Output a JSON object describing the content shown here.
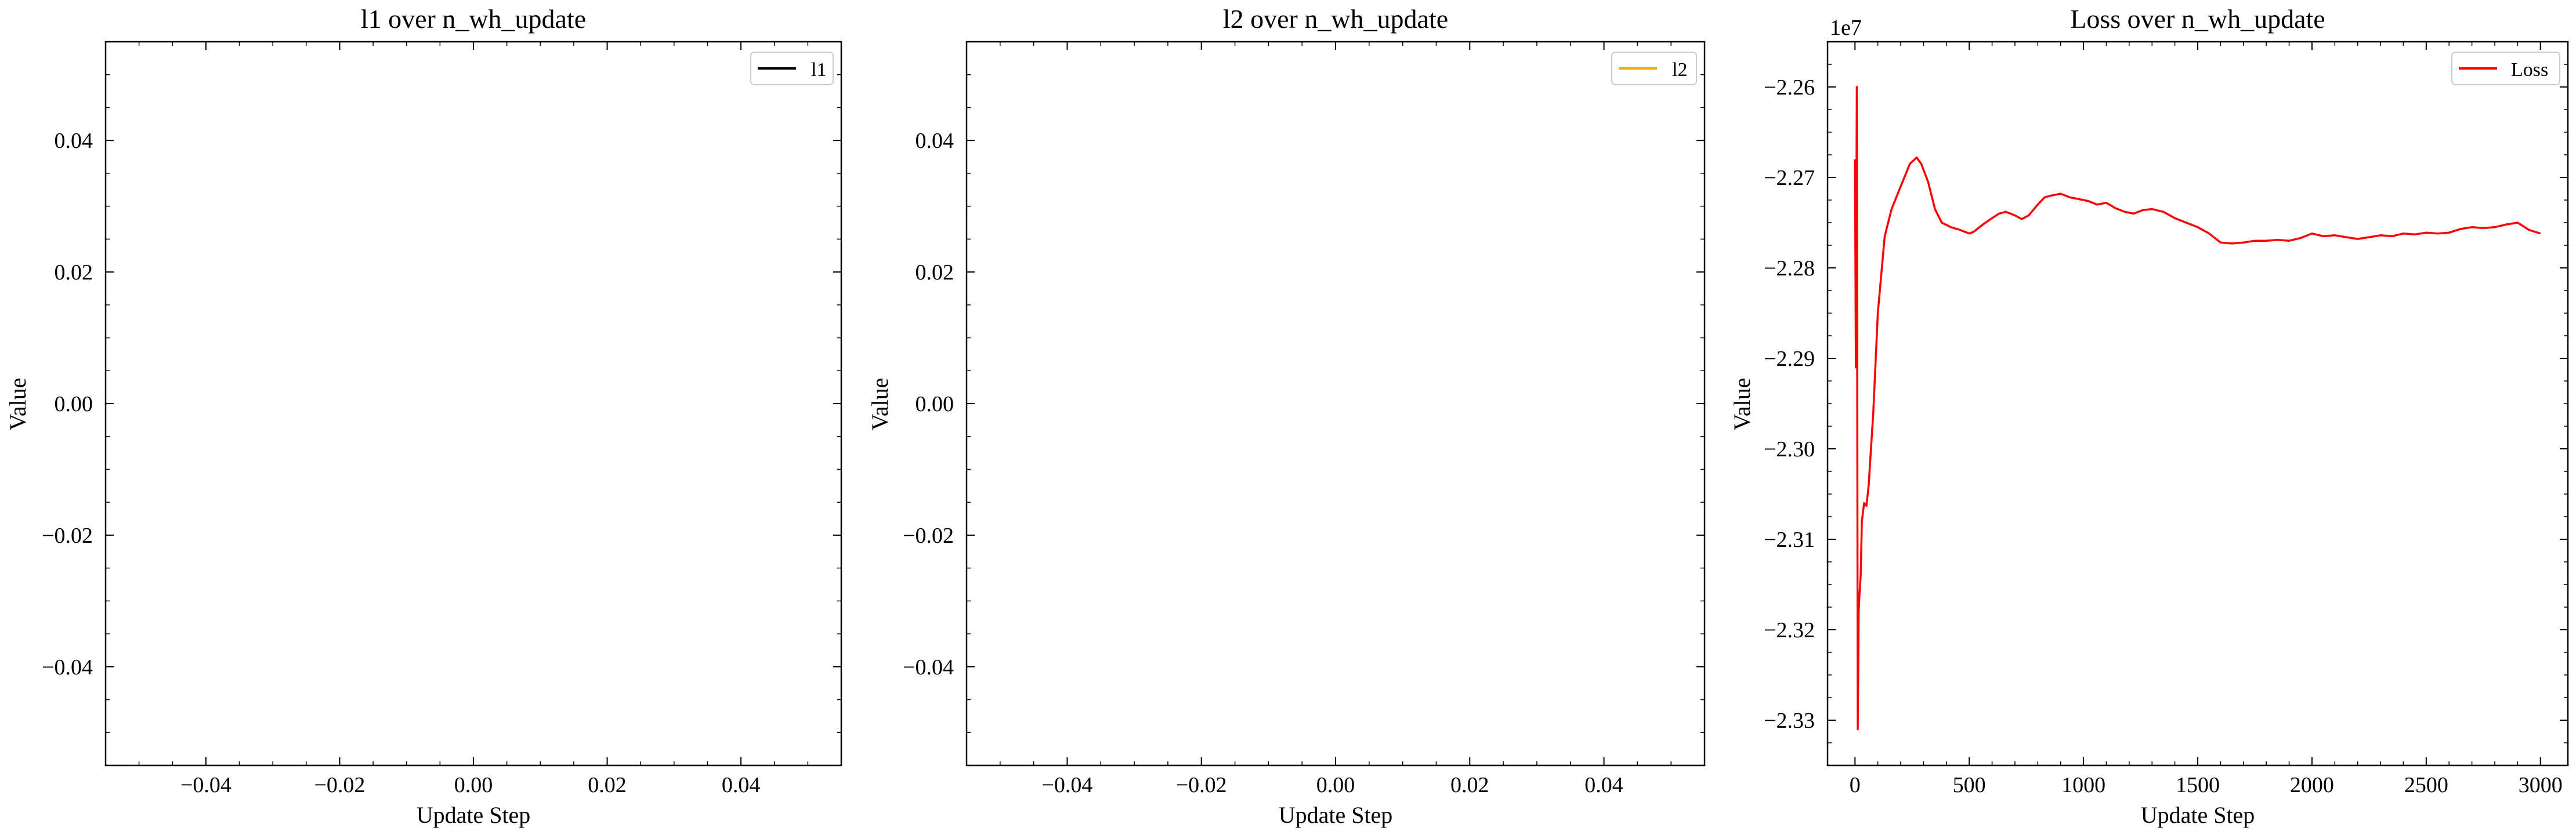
{
  "figure": {
    "background": "#ffffff"
  },
  "chart_data": [
    {
      "type": "line",
      "title": "l1 over n_wh_update",
      "xlabel": "Update Step",
      "ylabel": "Value",
      "xlim": [
        -0.055,
        0.055
      ],
      "ylim": [
        -0.055,
        0.055
      ],
      "xticks": [
        -0.04,
        -0.02,
        0.0,
        0.02,
        0.04
      ],
      "xtick_labels": [
        "−0.04",
        "−0.02",
        "0.00",
        "0.02",
        "0.04"
      ],
      "yticks": [
        -0.04,
        -0.02,
        0.0,
        0.02,
        0.04
      ],
      "ytick_labels": [
        "−0.04",
        "−0.02",
        "0.00",
        "0.02",
        "0.04"
      ],
      "legend_position": "top-right",
      "grid": false,
      "series": [
        {
          "name": "l1",
          "color": "#000000",
          "x": [],
          "y": []
        }
      ]
    },
    {
      "type": "line",
      "title": "l2 over n_wh_update",
      "xlabel": "Update Step",
      "ylabel": "Value",
      "xlim": [
        -0.055,
        0.055
      ],
      "ylim": [
        -0.055,
        0.055
      ],
      "xticks": [
        -0.04,
        -0.02,
        0.0,
        0.02,
        0.04
      ],
      "xtick_labels": [
        "−0.04",
        "−0.02",
        "0.00",
        "0.02",
        "0.04"
      ],
      "yticks": [
        -0.04,
        -0.02,
        0.0,
        0.02,
        0.04
      ],
      "ytick_labels": [
        "−0.04",
        "−0.02",
        "0.00",
        "0.02",
        "0.04"
      ],
      "legend_position": "top-right",
      "grid": false,
      "series": [
        {
          "name": "l2",
          "color": "#ffa500",
          "x": [],
          "y": []
        }
      ]
    },
    {
      "type": "line",
      "title": "Loss over n_wh_update",
      "xlabel": "Update Step",
      "ylabel": "Value",
      "offset_text": "1e7",
      "xlim": [
        -120,
        3120
      ],
      "ylim": [
        -2.335,
        -2.255
      ],
      "xticks": [
        0,
        500,
        1000,
        1500,
        2000,
        2500,
        3000
      ],
      "xtick_labels": [
        "0",
        "500",
        "1000",
        "1500",
        "2000",
        "2500",
        "3000"
      ],
      "yticks": [
        -2.33,
        -2.32,
        -2.31,
        -2.3,
        -2.29,
        -2.28,
        -2.27,
        -2.26
      ],
      "ytick_labels": [
        "−2.33",
        "−2.32",
        "−2.31",
        "−2.30",
        "−2.29",
        "−2.28",
        "−2.27",
        "−2.26"
      ],
      "legend_position": "top-right",
      "grid": false,
      "series": [
        {
          "name": "Loss",
          "color": "#ff0000",
          "x": [
            0,
            4,
            8,
            12,
            16,
            20,
            25,
            30,
            40,
            50,
            60,
            70,
            80,
            100,
            130,
            160,
            200,
            240,
            270,
            290,
            320,
            350,
            380,
            420,
            460,
            500,
            520,
            560,
            600,
            630,
            660,
            700,
            730,
            760,
            800,
            830,
            860,
            900,
            940,
            980,
            1020,
            1060,
            1100,
            1140,
            1180,
            1220,
            1260,
            1300,
            1350,
            1400,
            1450,
            1500,
            1550,
            1600,
            1650,
            1700,
            1750,
            1800,
            1850,
            1900,
            1950,
            2000,
            2050,
            2100,
            2150,
            2200,
            2250,
            2300,
            2350,
            2400,
            2450,
            2500,
            2550,
            2600,
            2650,
            2700,
            2750,
            2800,
            2850,
            2900,
            2950,
            3000
          ],
          "y": [
            -2.268,
            -2.291,
            -2.26,
            -2.331,
            -2.318,
            -2.316,
            -2.314,
            -2.308,
            -2.306,
            -2.3063,
            -2.304,
            -2.3,
            -2.296,
            -2.285,
            -2.2765,
            -2.2735,
            -2.271,
            -2.2685,
            -2.2678,
            -2.2685,
            -2.2705,
            -2.2735,
            -2.275,
            -2.2755,
            -2.2758,
            -2.2762,
            -2.276,
            -2.2752,
            -2.2745,
            -2.274,
            -2.2738,
            -2.2742,
            -2.2746,
            -2.2742,
            -2.273,
            -2.2722,
            -2.272,
            -2.2718,
            -2.2722,
            -2.2724,
            -2.2726,
            -2.273,
            -2.2728,
            -2.2734,
            -2.2738,
            -2.274,
            -2.2736,
            -2.2735,
            -2.2738,
            -2.2745,
            -2.275,
            -2.2755,
            -2.2762,
            -2.2772,
            -2.2773,
            -2.2772,
            -2.277,
            -2.277,
            -2.2769,
            -2.277,
            -2.2767,
            -2.2762,
            -2.2765,
            -2.2764,
            -2.2766,
            -2.2768,
            -2.2766,
            -2.2764,
            -2.2765,
            -2.2762,
            -2.2763,
            -2.2761,
            -2.2762,
            -2.2761,
            -2.2757,
            -2.2755,
            -2.2756,
            -2.2755,
            -2.2752,
            -2.275,
            -2.2758,
            -2.2762
          ]
        }
      ]
    }
  ]
}
